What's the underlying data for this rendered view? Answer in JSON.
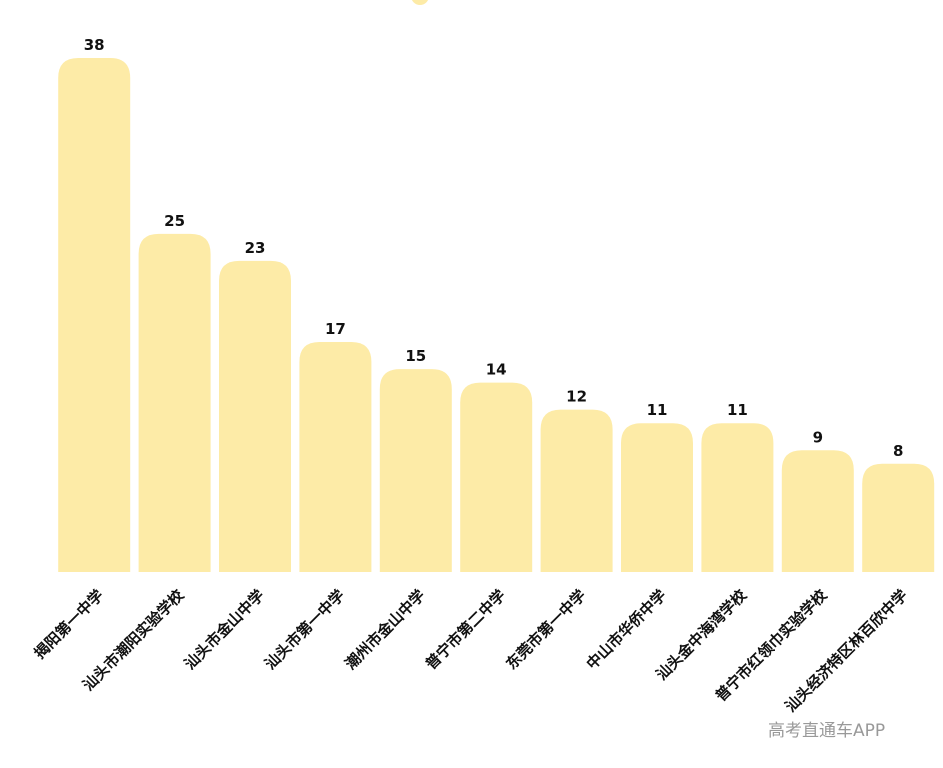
{
  "chart_data": {
    "type": "bar",
    "categories": [
      "揭阳第一中学",
      "汕头市潮阳实验学校",
      "汕头市金山中学",
      "汕头市第一中学",
      "潮州市金山中学",
      "普宁市第二中学",
      "东莞市第一中学",
      "中山市华侨中学",
      "汕头金中海湾学校",
      "普宁市红领巾实验学校",
      "汕头经济特区林百欣中学"
    ],
    "values": [
      38,
      25,
      23,
      17,
      15,
      14,
      12,
      11,
      11,
      9,
      8
    ],
    "color": "#fdeba7"
  },
  "watermark": "高考直通车APP"
}
